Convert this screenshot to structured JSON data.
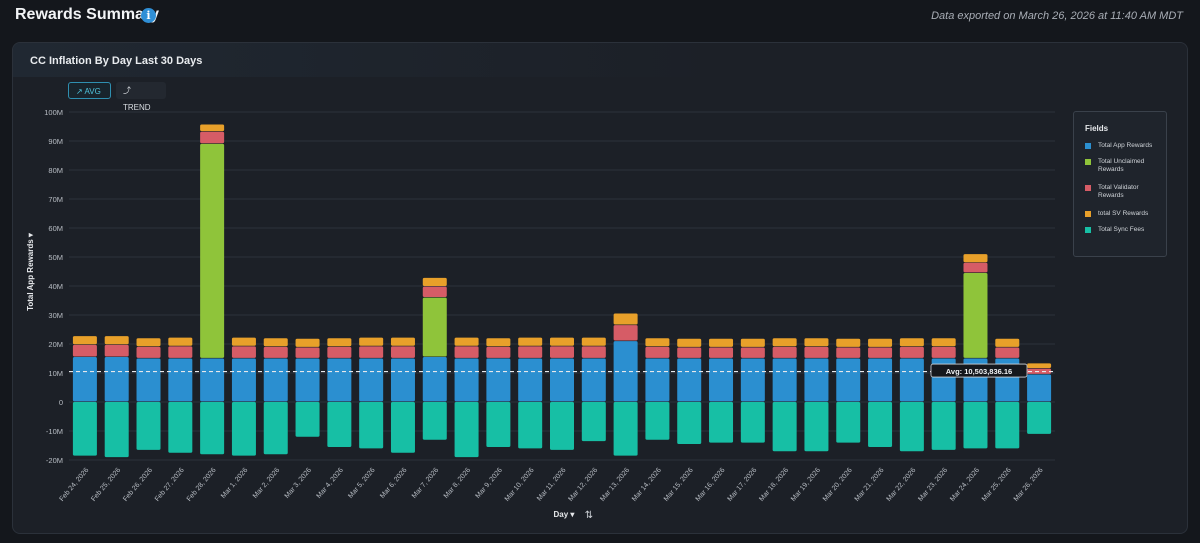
{
  "header": {
    "title": "Rewards Summary",
    "info_icon": "i",
    "export_note": "Data exported on March 26, 2026 at 11:40 AM MDT"
  },
  "card": {
    "title": "CC Inflation By Day Last 30 Days",
    "buttons": {
      "avg": "↗ AVG",
      "trend": "⤴ TREND"
    }
  },
  "legend": {
    "title": "Fields",
    "items": [
      {
        "label": "Total App Rewards",
        "color": "#2b8fd0"
      },
      {
        "label": "Total Unclaimed Rewards",
        "color": "#8fc43a"
      },
      {
        "label": "Total Validator Rewards",
        "color": "#d65c66"
      },
      {
        "label": "total SV Rewards",
        "color": "#e8a02a"
      },
      {
        "label": "Total Sync Fees",
        "color": "#17bfa5"
      }
    ]
  },
  "chart_data": {
    "type": "bar",
    "stacked": true,
    "title": "CC Inflation By Day Last 30 Days",
    "xlabel": "Day ▾",
    "ylabel": "Total App Rewards ▾",
    "ylim": [
      -20000000,
      100000000
    ],
    "yticks": [
      {
        "value": 100000000,
        "label": "100M"
      },
      {
        "value": 90000000,
        "label": "90M"
      },
      {
        "value": 80000000,
        "label": "80M"
      },
      {
        "value": 70000000,
        "label": "70M"
      },
      {
        "value": 60000000,
        "label": "60M"
      },
      {
        "value": 50000000,
        "label": "50M"
      },
      {
        "value": 40000000,
        "label": "40M"
      },
      {
        "value": 30000000,
        "label": "30M"
      },
      {
        "value": 20000000,
        "label": "20M"
      },
      {
        "value": 10000000,
        "label": "10M"
      },
      {
        "value": 0,
        "label": "0"
      },
      {
        "value": -10000000,
        "label": "-10M"
      },
      {
        "value": -20000000,
        "label": "-20M"
      }
    ],
    "grid": true,
    "legend_position": "right",
    "categories": [
      "Feb 24, 2026",
      "Feb 25, 2026",
      "Feb 26, 2026",
      "Feb 27, 2026",
      "Feb 28, 2026",
      "Mar 1, 2026",
      "Mar 2, 2026",
      "Mar 3, 2026",
      "Mar 4, 2026",
      "Mar 5, 2026",
      "Mar 6, 2026",
      "Mar 7, 2026",
      "Mar 8, 2026",
      "Mar 9, 2026",
      "Mar 10, 2026",
      "Mar 11, 2026",
      "Mar 12, 2026",
      "Mar 13, 2026",
      "Mar 14, 2026",
      "Mar 15, 2026",
      "Mar 16, 2026",
      "Mar 17, 2026",
      "Mar 18, 2026",
      "Mar 19, 2026",
      "Mar 20, 2026",
      "Mar 21, 2026",
      "Mar 22, 2026",
      "Mar 23, 2026",
      "Mar 24, 2026",
      "Mar 25, 2026",
      "Mar 26, 2026"
    ],
    "series": [
      {
        "name": "Total App Rewards",
        "color": "#2b8fd0",
        "values": [
          15500000,
          15500000,
          15000000,
          15000000,
          15000000,
          15000000,
          15000000,
          15000000,
          15000000,
          15000000,
          15000000,
          15500000,
          15000000,
          15000000,
          15000000,
          15000000,
          15000000,
          21000000,
          15000000,
          15000000,
          15000000,
          15000000,
          15000000,
          15000000,
          15000000,
          15000000,
          15000000,
          15000000,
          15000000,
          15000000,
          9500000
        ]
      },
      {
        "name": "Total Unclaimed Rewards",
        "color": "#8fc43a",
        "values": [
          0,
          0,
          0,
          0,
          74000000,
          0,
          0,
          0,
          0,
          0,
          0,
          20500000,
          0,
          0,
          0,
          0,
          0,
          0,
          0,
          0,
          0,
          0,
          0,
          0,
          0,
          0,
          0,
          0,
          29500000,
          0,
          0
        ]
      },
      {
        "name": "Total Validator Rewards",
        "color": "#d65c66",
        "values": [
          4200000,
          4200000,
          4000000,
          4200000,
          4200000,
          4200000,
          4000000,
          3800000,
          4000000,
          4200000,
          4200000,
          3800000,
          4200000,
          4000000,
          4200000,
          4200000,
          4200000,
          5500000,
          4000000,
          3800000,
          3800000,
          3800000,
          4000000,
          4000000,
          3800000,
          3800000,
          4000000,
          4000000,
          3500000,
          3800000,
          2000000
        ]
      },
      {
        "name": "total SV Rewards",
        "color": "#e8a02a",
        "values": [
          3000000,
          3000000,
          3000000,
          3000000,
          2500000,
          3000000,
          3000000,
          3000000,
          3000000,
          3000000,
          3000000,
          3000000,
          3000000,
          3000000,
          3000000,
          3000000,
          3000000,
          4000000,
          3000000,
          3000000,
          3000000,
          3000000,
          3000000,
          3000000,
          3000000,
          3000000,
          3000000,
          3000000,
          3000000,
          3000000,
          1800000
        ]
      },
      {
        "name": "Total Sync Fees",
        "color": "#17bfa5",
        "values": [
          -18500000,
          -19000000,
          -16500000,
          -17500000,
          -18000000,
          -18500000,
          -18000000,
          -12000000,
          -15500000,
          -16000000,
          -17500000,
          -13000000,
          -19000000,
          -15500000,
          -16000000,
          -16500000,
          -13500000,
          -18500000,
          -13000000,
          -14500000,
          -14000000,
          -14000000,
          -17000000,
          -17000000,
          -14000000,
          -15500000,
          -17000000,
          -16500000,
          -16000000,
          -16000000,
          -11000000
        ]
      }
    ],
    "average": {
      "value": 10503836.16,
      "label": "Avg: 10,503,836.16"
    }
  }
}
